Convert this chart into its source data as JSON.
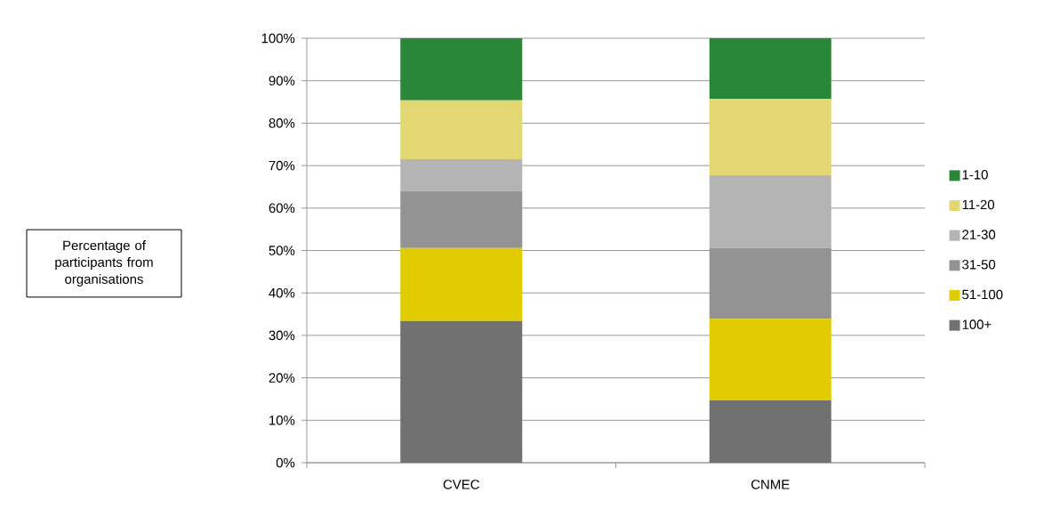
{
  "chart_data": {
    "type": "bar",
    "stacked": true,
    "annotations": [
      "Percentage of participants from organisations"
    ],
    "categories": [
      "CVEC",
      "CNME"
    ],
    "series": [
      {
        "name": "100+",
        "color": "#717171",
        "values": [
          33.4,
          14.7
        ]
      },
      {
        "name": "51-100",
        "color": "#e0cc00",
        "values": [
          17.2,
          19.2
        ]
      },
      {
        "name": "31-50",
        "color": "#939393",
        "values": [
          13.4,
          16.7
        ]
      },
      {
        "name": "21-30",
        "color": "#b4b4b4",
        "values": [
          7.5,
          17.1
        ]
      },
      {
        "name": "11-20",
        "color": "#e2d773",
        "values": [
          13.9,
          18.0
        ]
      },
      {
        "name": "1-10",
        "color": "#2a873a",
        "values": [
          14.6,
          14.3
        ]
      }
    ],
    "ylim": [
      0,
      100
    ],
    "yticks": [
      {
        "value": 0,
        "label": "0%"
      },
      {
        "value": 10,
        "label": "10%"
      },
      {
        "value": 20,
        "label": "20%"
      },
      {
        "value": 30,
        "label": "30%"
      },
      {
        "value": 40,
        "label": "40%"
      },
      {
        "value": 50,
        "label": "50%"
      },
      {
        "value": 60,
        "label": "60%"
      },
      {
        "value": 70,
        "label": "70%"
      },
      {
        "value": 80,
        "label": "80%"
      },
      {
        "value": 90,
        "label": "90%"
      },
      {
        "value": 100,
        "label": "100%"
      }
    ],
    "grid": "y",
    "legend": "right"
  }
}
